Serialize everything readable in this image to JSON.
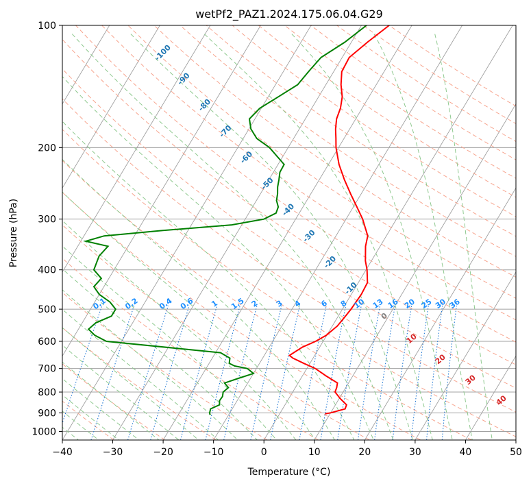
{
  "chart_data": {
    "type": "line",
    "title": "wetPf2_PAZ1.2024.175.06.04.G29",
    "xlabel": "Temperature (°C)",
    "ylabel": "Pressure (hPa)",
    "xlim": [
      -40,
      50
    ],
    "ylim": [
      1050,
      100
    ],
    "y_scale": "log",
    "grid": true,
    "x_ticks": [
      "−40",
      "−30",
      "−20",
      "−10",
      "0",
      "10",
      "20",
      "30",
      "40",
      "50"
    ],
    "x_tick_values": [
      -40,
      -30,
      -20,
      -10,
      0,
      10,
      20,
      30,
      40,
      50
    ],
    "y_ticks": [
      "100",
      "200",
      "300",
      "400",
      "500",
      "600",
      "700",
      "800",
      "900",
      "1000"
    ],
    "y_tick_values": [
      100,
      200,
      300,
      400,
      500,
      600,
      700,
      800,
      900,
      1000
    ],
    "colors": {
      "temperature": "#ff0000",
      "dewpoint": "#008000",
      "isotherm": "#a0a0a0",
      "dry_adiabat": "#f7a58f",
      "moist_adiabat": "#8fc98f",
      "mixing_ratio": "#1f77d4",
      "label_blue": "#1f77b4",
      "label_red": "#d62728",
      "label_grey": "#808080",
      "mixing_label": "#1e90ff"
    },
    "series": [
      {
        "key": "temperature",
        "pressure": [
          100,
          110,
          120,
          130,
          140,
          150,
          160,
          170,
          180,
          190,
          200,
          220,
          240,
          260,
          280,
          300,
          330,
          350,
          380,
          400,
          430,
          460,
          500,
          530,
          550,
          580,
          600,
          620,
          640,
          650,
          660,
          680,
          700,
          730,
          760,
          780,
          800,
          830,
          860,
          880,
          900,
          905
        ],
        "values": [
          -24.5,
          -26.8,
          -28.6,
          -28.4,
          -27.0,
          -25.3,
          -24.3,
          -23.8,
          -22.8,
          -21.6,
          -20.5,
          -17.9,
          -15.0,
          -12.1,
          -9.3,
          -6.7,
          -3.7,
          -2.9,
          -1.2,
          0.2,
          1.8,
          2.0,
          1.7,
          1.3,
          1.0,
          -0.1,
          -1.5,
          -3.4,
          -4.5,
          -5.0,
          -4.0,
          -1.2,
          1.7,
          4.7,
          7.8,
          8.2,
          8.4,
          10.2,
          12.2,
          12.4,
          10.0,
          9.0
        ]
      },
      {
        "key": "dewpoint",
        "pressure": [
          100,
          110,
          120,
          130,
          140,
          150,
          160,
          170,
          180,
          190,
          200,
          210,
          220,
          230,
          240,
          250,
          260,
          270,
          280,
          290,
          300,
          310,
          320,
          330,
          340,
          350,
          370,
          400,
          420,
          440,
          460,
          480,
          500,
          520,
          540,
          560,
          580,
          600,
          640,
          660,
          680,
          690,
          700,
          720,
          740,
          760,
          780,
          800,
          820,
          840,
          860,
          880,
          900,
          910
        ],
        "values": [
          -29.0,
          -31.3,
          -34.2,
          -35.0,
          -35.6,
          -38.0,
          -40.3,
          -41.1,
          -39.6,
          -37.3,
          -33.7,
          -31.2,
          -28.8,
          -28.7,
          -28.0,
          -27.4,
          -26.6,
          -26.0,
          -24.9,
          -24.6,
          -26.3,
          -32.0,
          -45.0,
          -56.0,
          -59.0,
          -54.0,
          -54.6,
          -54.0,
          -51.5,
          -52.0,
          -50.0,
          -47.0,
          -45.0,
          -45.0,
          -47.3,
          -48.0,
          -46.0,
          -43.0,
          -19.0,
          -16.5,
          -16.0,
          -14.6,
          -11.8,
          -10.0,
          -12.4,
          -14.6,
          -13.3,
          -13.8,
          -13.4,
          -13.5,
          -13.0,
          -14.3,
          -14.0,
          -13.7
        ]
      }
    ],
    "mixing_ratio_labels": [
      "0.1",
      "0.2",
      "0.4",
      "0.6",
      "1",
      "1.5",
      "2",
      "3",
      "4",
      "6",
      "8",
      "10",
      "13",
      "16",
      "20",
      "25",
      "30",
      "36"
    ],
    "mixing_ratio_values": [
      0.1,
      0.2,
      0.4,
      0.6,
      1,
      1.5,
      2,
      3,
      4,
      6,
      8,
      10,
      13,
      16,
      20,
      25,
      30,
      36
    ],
    "dry_adiabat_labels": [
      "-100",
      "-90",
      "-80",
      "-70",
      "-60",
      "-50",
      "-40",
      "-30",
      "-20",
      "-10"
    ],
    "moist_adiabat_labels": [
      "0",
      "10",
      "20",
      "30",
      "40"
    ]
  }
}
